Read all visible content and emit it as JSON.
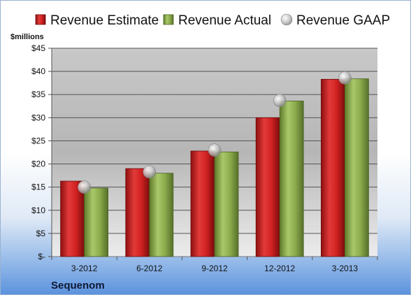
{
  "chart_data": {
    "type": "bar",
    "ylabel": "$millions",
    "ylim": [
      0,
      45
    ],
    "yticks": [
      0,
      5,
      10,
      15,
      20,
      25,
      30,
      35,
      40,
      45
    ],
    "ytick_labels": [
      "$-",
      "$5",
      "$10",
      "$15",
      "$20",
      "$25",
      "$30",
      "$35",
      "$40",
      "$45"
    ],
    "categories": [
      "3-2012",
      "6-2012",
      "9-2012",
      "12-2012",
      "3-2013"
    ],
    "series": [
      {
        "name": "Revenue Estimate",
        "type": "bar",
        "color": "#cc1f1f",
        "values": [
          16.3,
          19.0,
          22.8,
          30.0,
          38.3
        ]
      },
      {
        "name": "Revenue Actual",
        "type": "bar",
        "color": "#8fb04a",
        "values": [
          14.8,
          18.0,
          22.6,
          33.6,
          38.4
        ]
      },
      {
        "name": "Revenue GAAP",
        "type": "scatter",
        "color": "#b8b8b8",
        "values": [
          15.0,
          18.3,
          23.0,
          33.7,
          38.6
        ]
      }
    ],
    "legend": "top",
    "grid": true
  },
  "company": "Sequenom"
}
